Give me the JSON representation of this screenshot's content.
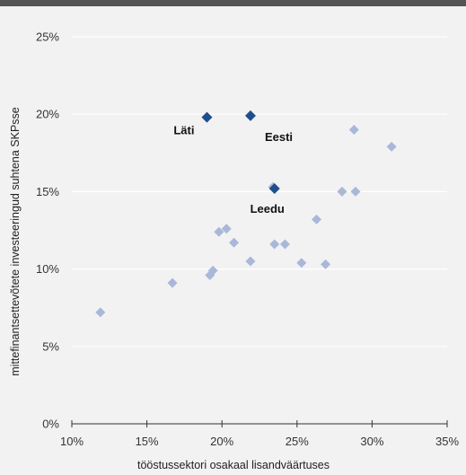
{
  "chart_data": {
    "type": "scatter",
    "title": "",
    "xlabel": "tööstussektori osakaal lisandväärtuses",
    "ylabel": "mittefinantsettevõtete investeeringud suhtena SKPsse",
    "xlim": [
      10,
      35
    ],
    "ylim": [
      0,
      25
    ],
    "x_ticks": [
      "10%",
      "15%",
      "20%",
      "25%",
      "30%",
      "35%"
    ],
    "y_ticks": [
      "0%",
      "5%",
      "10%",
      "15%",
      "20%",
      "25%"
    ],
    "grid": "horizontal",
    "colors": {
      "highlight": "#1f4e8c",
      "other": "#a9b8d9",
      "grid": "#ffffff",
      "background": "#f2f2f2"
    },
    "highlighted": [
      {
        "label": "Läti",
        "x": 19.0,
        "y": 19.8
      },
      {
        "label": "Eesti",
        "x": 21.9,
        "y": 19.9
      },
      {
        "label": "Leedu",
        "x": 23.5,
        "y": 15.2
      }
    ],
    "points": [
      {
        "x": 11.9,
        "y": 7.2
      },
      {
        "x": 16.7,
        "y": 9.1
      },
      {
        "x": 19.2,
        "y": 9.6
      },
      {
        "x": 19.4,
        "y": 9.9
      },
      {
        "x": 19.8,
        "y": 12.4
      },
      {
        "x": 20.3,
        "y": 12.6
      },
      {
        "x": 20.8,
        "y": 11.7
      },
      {
        "x": 21.9,
        "y": 10.5
      },
      {
        "x": 23.4,
        "y": 15.3
      },
      {
        "x": 23.5,
        "y": 11.6
      },
      {
        "x": 24.2,
        "y": 11.6
      },
      {
        "x": 25.3,
        "y": 10.4
      },
      {
        "x": 26.3,
        "y": 13.2
      },
      {
        "x": 26.9,
        "y": 10.3
      },
      {
        "x": 28.0,
        "y": 15.0
      },
      {
        "x": 28.8,
        "y": 19.0
      },
      {
        "x": 28.9,
        "y": 15.0
      },
      {
        "x": 31.3,
        "y": 17.9
      }
    ]
  }
}
